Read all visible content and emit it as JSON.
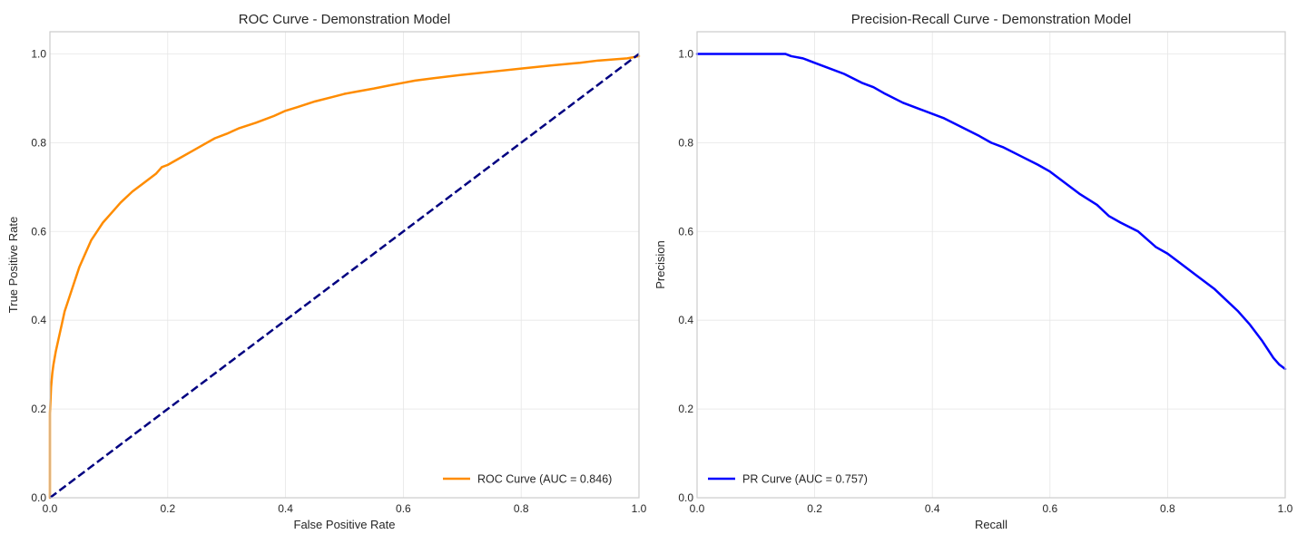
{
  "colors": {
    "roc_curve": "#ff8c00",
    "diagonal": "#000080",
    "pr_curve": "#0000ff",
    "grid": "#e6e6e6",
    "spine": "#cccccc",
    "text": "#262626"
  },
  "chart_data": [
    {
      "type": "line",
      "title": "ROC Curve - Demonstration Model",
      "xlabel": "False Positive Rate",
      "ylabel": "True Positive Rate",
      "xlim": [
        0.0,
        1.0
      ],
      "ylim": [
        0.0,
        1.05
      ],
      "xticks": [
        0.0,
        0.2,
        0.4,
        0.6,
        0.8,
        1.0
      ],
      "yticks": [
        0.0,
        0.2,
        0.4,
        0.6,
        0.8,
        1.0
      ],
      "xtick_labels": [
        "0.0",
        "0.2",
        "0.4",
        "0.6",
        "0.8",
        "1.0"
      ],
      "ytick_labels": [
        "0.0",
        "0.2",
        "0.4",
        "0.6",
        "0.8",
        "1.0"
      ],
      "grid": true,
      "legend_position": "lower-right",
      "series": [
        {
          "name": "ROC Curve (AUC = 0.846)",
          "color_key": "roc_curve",
          "line_style": "solid",
          "in_legend": true,
          "x": [
            0.0,
            0.0,
            0.001,
            0.002,
            0.004,
            0.006,
            0.01,
            0.015,
            0.02,
            0.025,
            0.03,
            0.04,
            0.05,
            0.06,
            0.07,
            0.08,
            0.09,
            0.1,
            0.12,
            0.14,
            0.16,
            0.18,
            0.19,
            0.2,
            0.22,
            0.24,
            0.26,
            0.28,
            0.3,
            0.32,
            0.35,
            0.38,
            0.4,
            0.42,
            0.45,
            0.48,
            0.5,
            0.52,
            0.55,
            0.58,
            0.6,
            0.62,
            0.65,
            0.7,
            0.75,
            0.8,
            0.85,
            0.9,
            0.93,
            0.96,
            0.98,
            1.0
          ],
          "y": [
            0.0,
            0.19,
            0.22,
            0.25,
            0.28,
            0.3,
            0.33,
            0.36,
            0.39,
            0.42,
            0.44,
            0.48,
            0.52,
            0.55,
            0.58,
            0.6,
            0.62,
            0.635,
            0.665,
            0.69,
            0.71,
            0.73,
            0.745,
            0.75,
            0.765,
            0.78,
            0.795,
            0.81,
            0.82,
            0.832,
            0.845,
            0.86,
            0.872,
            0.88,
            0.893,
            0.903,
            0.91,
            0.915,
            0.922,
            0.93,
            0.935,
            0.94,
            0.945,
            0.953,
            0.96,
            0.967,
            0.974,
            0.98,
            0.985,
            0.988,
            0.99,
            0.995
          ]
        },
        {
          "name": "",
          "color_key": "diagonal",
          "line_style": "dashed",
          "in_legend": false,
          "x": [
            0.0,
            1.0
          ],
          "y": [
            0.0,
            1.0
          ]
        }
      ]
    },
    {
      "type": "line",
      "title": "Precision-Recall Curve - Demonstration Model",
      "xlabel": "Recall",
      "ylabel": "Precision",
      "xlim": [
        0.0,
        1.0
      ],
      "ylim": [
        0.0,
        1.05
      ],
      "xticks": [
        0.0,
        0.2,
        0.4,
        0.6,
        0.8,
        1.0
      ],
      "yticks": [
        0.0,
        0.2,
        0.4,
        0.6,
        0.8,
        1.0
      ],
      "xtick_labels": [
        "0.0",
        "0.2",
        "0.4",
        "0.6",
        "0.8",
        "1.0"
      ],
      "ytick_labels": [
        "0.0",
        "0.2",
        "0.4",
        "0.6",
        "0.8",
        "1.0"
      ],
      "grid": true,
      "legend_position": "lower-left",
      "series": [
        {
          "name": "PR Curve (AUC = 0.757)",
          "color_key": "pr_curve",
          "line_style": "solid",
          "in_legend": true,
          "x": [
            0.0,
            0.05,
            0.1,
            0.15,
            0.16,
            0.18,
            0.2,
            0.22,
            0.25,
            0.28,
            0.3,
            0.32,
            0.35,
            0.38,
            0.4,
            0.42,
            0.45,
            0.48,
            0.5,
            0.52,
            0.55,
            0.58,
            0.6,
            0.62,
            0.65,
            0.68,
            0.7,
            0.72,
            0.75,
            0.78,
            0.8,
            0.82,
            0.85,
            0.88,
            0.9,
            0.92,
            0.94,
            0.96,
            0.98,
            0.99,
            1.0
          ],
          "y": [
            1.0,
            1.0,
            1.0,
            1.0,
            0.995,
            0.99,
            0.98,
            0.97,
            0.955,
            0.935,
            0.925,
            0.91,
            0.89,
            0.875,
            0.865,
            0.855,
            0.835,
            0.815,
            0.8,
            0.79,
            0.77,
            0.75,
            0.735,
            0.715,
            0.685,
            0.66,
            0.635,
            0.62,
            0.6,
            0.565,
            0.55,
            0.53,
            0.5,
            0.47,
            0.445,
            0.42,
            0.39,
            0.355,
            0.315,
            0.3,
            0.29
          ]
        }
      ]
    }
  ]
}
